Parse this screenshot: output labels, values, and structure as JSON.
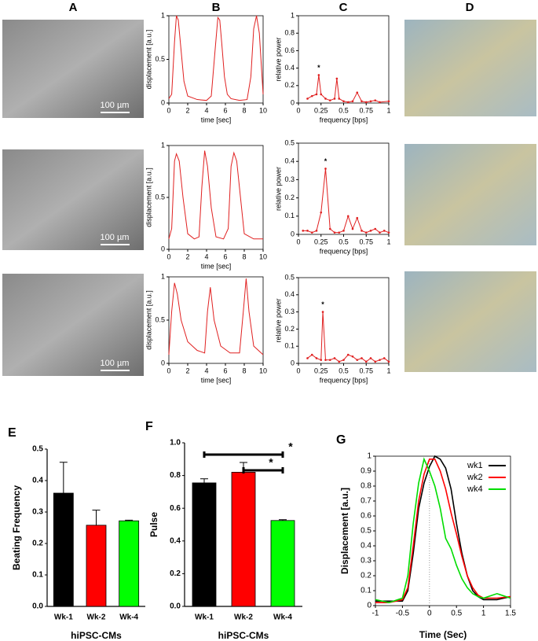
{
  "column_labels": [
    "A",
    "B",
    "C",
    "D"
  ],
  "images": [
    {
      "scale_bar": "100 µm"
    },
    {
      "scale_bar": "100 µm"
    },
    {
      "scale_bar": "100 µm"
    }
  ],
  "chart_data": [
    {
      "type": "line",
      "xlabel": "time [sec]",
      "ylabel": "displacement [a.u.]",
      "xlim": [
        0,
        10
      ],
      "ylim": [
        0,
        1
      ],
      "xticks": [
        0,
        2,
        4,
        6,
        8,
        10
      ],
      "yticks": [
        0,
        0.5,
        1
      ],
      "color": "#e02020",
      "x": [
        0,
        0.3,
        0.6,
        0.8,
        1.0,
        1.3,
        1.6,
        2.0,
        3,
        4,
        4.5,
        4.9,
        5.2,
        5.4,
        5.6,
        5.9,
        6.2,
        6.6,
        7.5,
        8.3,
        8.7,
        9.0,
        9.3,
        9.6,
        10
      ],
      "values": [
        0.05,
        0.1,
        0.7,
        1.0,
        0.95,
        0.6,
        0.25,
        0.08,
        0.04,
        0.03,
        0.08,
        0.6,
        0.98,
        0.95,
        0.7,
        0.3,
        0.1,
        0.05,
        0.03,
        0.04,
        0.3,
        0.85,
        1.0,
        0.8,
        0.1
      ]
    },
    {
      "type": "line",
      "xlabel": "time [sec]",
      "ylabel": "displacement [a.u.]",
      "xlim": [
        0,
        10
      ],
      "ylim": [
        0,
        1
      ],
      "xticks": [
        0,
        2,
        4,
        6,
        8,
        10
      ],
      "yticks": [
        0,
        0.5,
        1
      ],
      "color": "#e02020",
      "x": [
        0,
        0.3,
        0.6,
        0.8,
        1.1,
        1.5,
        2,
        2.7,
        3.2,
        3.5,
        3.8,
        4.1,
        4.5,
        5,
        5.8,
        6.3,
        6.6,
        6.9,
        7.2,
        7.6,
        8,
        9,
        10
      ],
      "values": [
        0.1,
        0.2,
        0.85,
        0.92,
        0.85,
        0.5,
        0.15,
        0.1,
        0.12,
        0.6,
        0.95,
        0.8,
        0.4,
        0.12,
        0.1,
        0.2,
        0.8,
        0.93,
        0.85,
        0.5,
        0.15,
        0.1,
        0.1
      ]
    },
    {
      "type": "line",
      "xlabel": "time [sec]",
      "ylabel": "displacement [a.u.]",
      "xlim": [
        0,
        10
      ],
      "ylim": [
        0,
        1
      ],
      "xticks": [
        0,
        2,
        4,
        6,
        8,
        10
      ],
      "yticks": [
        0,
        0.5,
        1
      ],
      "color": "#e02020",
      "x": [
        0,
        0.3,
        0.6,
        0.9,
        1.3,
        2,
        3,
        3.8,
        4.1,
        4.4,
        4.8,
        5.5,
        6.5,
        7.5,
        7.9,
        8.2,
        8.5,
        9,
        10
      ],
      "values": [
        0.1,
        0.6,
        0.93,
        0.8,
        0.5,
        0.25,
        0.15,
        0.12,
        0.6,
        0.88,
        0.5,
        0.2,
        0.12,
        0.12,
        0.6,
        0.98,
        0.6,
        0.2,
        0.1
      ]
    },
    {
      "type": "line",
      "xlabel": "frequency [bps]",
      "ylabel": "relative power",
      "annotation": "*",
      "xlim": [
        0,
        1
      ],
      "ylim": [
        0,
        1
      ],
      "xticks": [
        0,
        0.25,
        0.5,
        0.75,
        1
      ],
      "yticks": [
        0,
        0.2,
        0.4,
        0.6,
        0.8,
        1
      ],
      "color": "#e02020",
      "x": [
        0.1,
        0.15,
        0.2,
        0.225,
        0.25,
        0.3,
        0.35,
        0.4,
        0.425,
        0.45,
        0.5,
        0.55,
        0.6,
        0.65,
        0.7,
        0.75,
        0.8,
        0.85,
        0.9,
        1
      ],
      "values": [
        0.05,
        0.08,
        0.1,
        0.32,
        0.1,
        0.05,
        0.03,
        0.05,
        0.28,
        0.05,
        0.02,
        0.01,
        0.02,
        0.12,
        0.02,
        0.01,
        0.02,
        0.03,
        0.01,
        0.02
      ]
    },
    {
      "type": "line",
      "xlabel": "frequency [bps]",
      "ylabel": "relative power",
      "annotation": "*",
      "xlim": [
        0,
        1
      ],
      "ylim": [
        0,
        0.5
      ],
      "xticks": [
        0,
        0.25,
        0.5,
        0.75,
        1
      ],
      "yticks": [
        0,
        0.1,
        0.2,
        0.3,
        0.4,
        0.5
      ],
      "color": "#e02020",
      "x": [
        0.05,
        0.1,
        0.15,
        0.2,
        0.25,
        0.3,
        0.35,
        0.4,
        0.45,
        0.5,
        0.55,
        0.6,
        0.65,
        0.7,
        0.75,
        0.8,
        0.85,
        0.9,
        0.95,
        1
      ],
      "values": [
        0.02,
        0.02,
        0.01,
        0.02,
        0.12,
        0.36,
        0.03,
        0.01,
        0.01,
        0.02,
        0.1,
        0.03,
        0.09,
        0.02,
        0.01,
        0.02,
        0.03,
        0.01,
        0.02,
        0.01
      ]
    },
    {
      "type": "line",
      "xlabel": "frequency [bps]",
      "ylabel": "relative power",
      "annotation": "*",
      "xlim": [
        0,
        1
      ],
      "ylim": [
        0,
        0.5
      ],
      "xticks": [
        0,
        0.25,
        0.5,
        0.75,
        1
      ],
      "yticks": [
        0,
        0.1,
        0.2,
        0.3,
        0.4,
        0.5
      ],
      "color": "#e02020",
      "x": [
        0.1,
        0.15,
        0.2,
        0.25,
        0.27,
        0.3,
        0.35,
        0.4,
        0.45,
        0.5,
        0.55,
        0.6,
        0.65,
        0.7,
        0.75,
        0.8,
        0.85,
        0.9,
        0.95,
        1
      ],
      "values": [
        0.03,
        0.05,
        0.03,
        0.02,
        0.3,
        0.02,
        0.02,
        0.03,
        0.01,
        0.02,
        0.05,
        0.04,
        0.02,
        0.03,
        0.01,
        0.03,
        0.01,
        0.02,
        0.03,
        0.01
      ]
    },
    {
      "type": "bar",
      "label": "E",
      "xlabel": "hiPSC-CMs",
      "ylabel": "Beating Frequency",
      "ylim": [
        0,
        0.5
      ],
      "yticks": [
        {
          "value": 0,
          "label": "0.0"
        },
        0.1,
        0.2,
        0.3,
        0.4,
        0.5
      ],
      "categories": [
        "Wk-1",
        "Wk-2",
        "Wk-4"
      ],
      "values": [
        0.36,
        0.258,
        0.272
      ],
      "errors": [
        0.098,
        0.048,
        0.002
      ],
      "colors": [
        "#000000",
        "#ff0000",
        "#00ff00"
      ]
    },
    {
      "type": "bar",
      "label": "F",
      "xlabel": "hiPSC-CMs",
      "ylabel": "Pulse",
      "ylim": [
        0,
        1
      ],
      "yticks": [
        {
          "value": 0,
          "label": "0.0"
        },
        0.2,
        0.4,
        0.6,
        0.8,
        {
          "value": 1,
          "label": "1.0"
        }
      ],
      "categories": [
        "Wk-1",
        "Wk-2",
        "Wk-4"
      ],
      "values": [
        0.755,
        0.82,
        0.525
      ],
      "errors": [
        0.025,
        0.06,
        0.005
      ],
      "colors": [
        "#000000",
        "#ff0000",
        "#00ff00"
      ],
      "annotations": [
        "*",
        "*"
      ]
    },
    {
      "type": "line",
      "label": "G",
      "xlabel": "Time (Sec)",
      "ylabel": "Displacement [a.u.]",
      "xlim": [
        -1,
        1.5
      ],
      "ylim": [
        0,
        1
      ],
      "xticks": [
        -1,
        -0.5,
        0,
        0.5,
        1,
        1.5
      ],
      "yticks": [
        0,
        0.1,
        0.2,
        0.3,
        0.4,
        0.5,
        0.6,
        0.7,
        0.8,
        0.9,
        1
      ],
      "x": [
        -1,
        -0.75,
        -0.5,
        -0.4,
        -0.3,
        -0.2,
        -0.1,
        0,
        0.1,
        0.2,
        0.3,
        0.4,
        0.5,
        0.6,
        0.7,
        0.8,
        0.9,
        1,
        1.25,
        1.5
      ],
      "series": [
        {
          "name": "wk1",
          "color": "#000000",
          "values": [
            0.03,
            0.03,
            0.03,
            0.1,
            0.35,
            0.65,
            0.82,
            0.93,
            1.0,
            0.98,
            0.92,
            0.78,
            0.55,
            0.35,
            0.2,
            0.1,
            0.06,
            0.04,
            0.04,
            0.06
          ]
        },
        {
          "name": "wk2",
          "color": "#ff0000",
          "values": [
            0.02,
            0.02,
            0.04,
            0.12,
            0.4,
            0.7,
            0.88,
            0.98,
            0.98,
            0.9,
            0.78,
            0.62,
            0.48,
            0.33,
            0.2,
            0.12,
            0.07,
            0.05,
            0.05,
            0.06
          ]
        },
        {
          "name": "wk4",
          "color": "#00dd00",
          "values": [
            0.04,
            0.02,
            0.05,
            0.2,
            0.55,
            0.82,
            0.98,
            0.9,
            0.8,
            0.65,
            0.45,
            0.38,
            0.27,
            0.18,
            0.12,
            0.08,
            0.06,
            0.05,
            0.08,
            0.05
          ]
        }
      ]
    }
  ]
}
